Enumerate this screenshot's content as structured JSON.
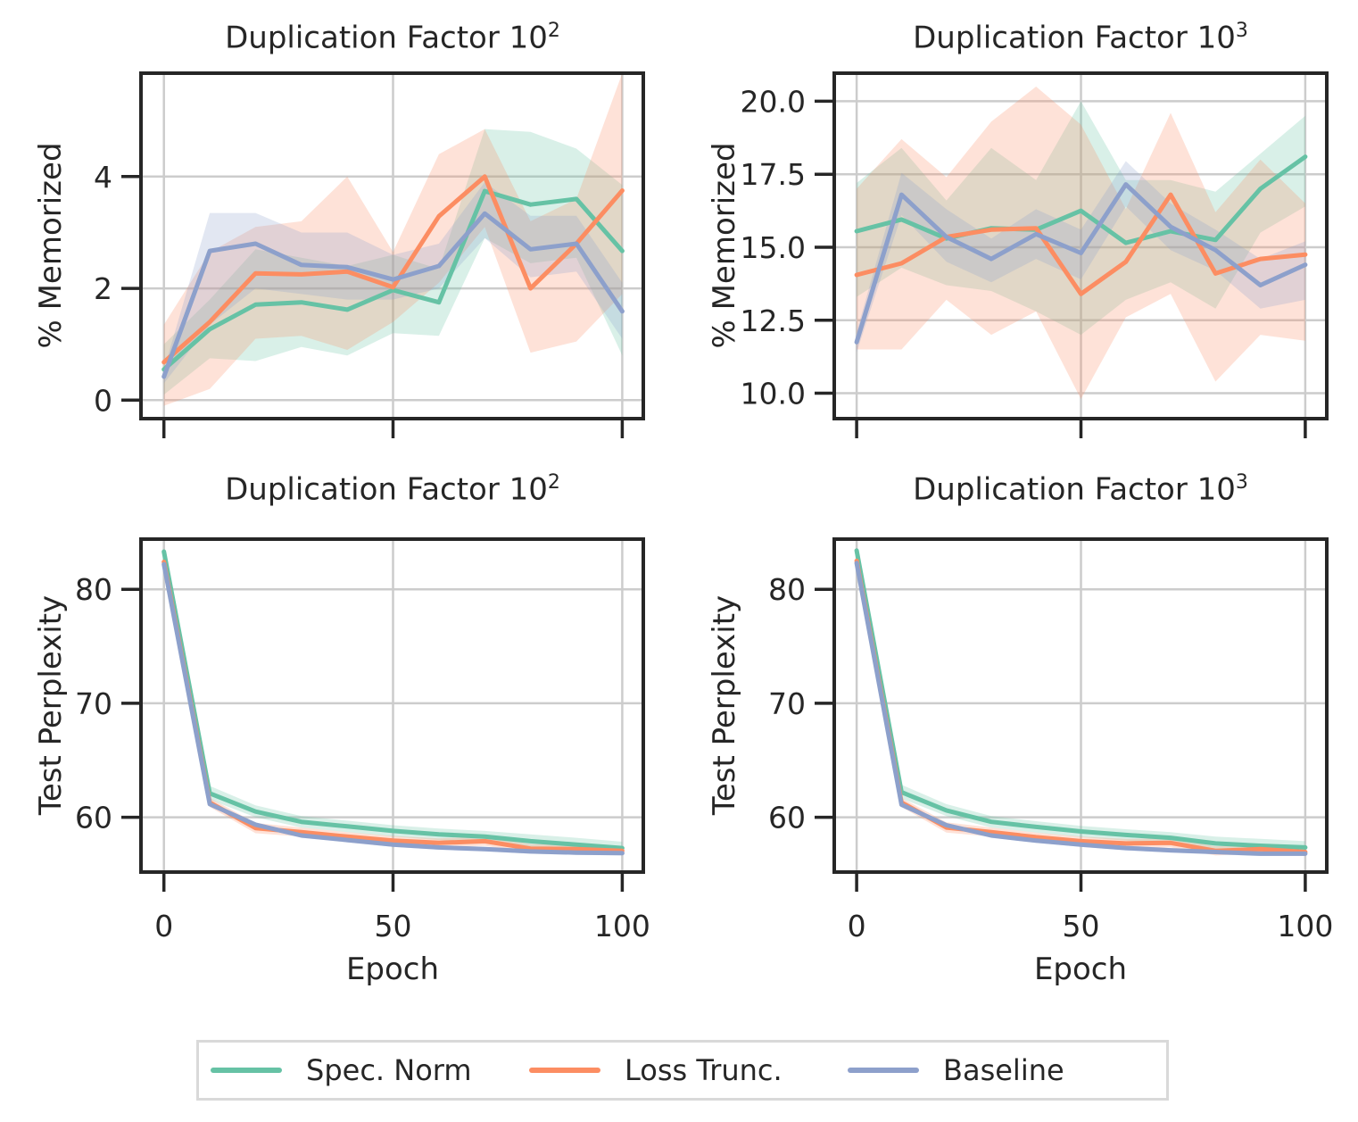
{
  "figure": {
    "background": "#ffffff",
    "text_color": "#262626",
    "grid_color": "#cccccc",
    "spine_color": "#262626",
    "legend": {
      "items": [
        {
          "label": "Spec. Norm",
          "color": "#66c2a5"
        },
        {
          "label": "Loss Trunc.",
          "color": "#fc8d62"
        },
        {
          "label": "Baseline",
          "color": "#8da0cb"
        }
      ]
    }
  },
  "chart_data": [
    {
      "type": "line",
      "position": "top-left",
      "title": "Duplication Factor 10^2",
      "title_base": "Duplication Factor 10",
      "title_exp": "2",
      "ylabel": "% Memorized",
      "xlabel": "",
      "grid": true,
      "x": [
        0,
        10,
        20,
        30,
        40,
        50,
        60,
        70,
        80,
        90,
        100
      ],
      "xlim": [
        -5,
        104.6
      ],
      "ylim": [
        -0.33,
        5.85
      ],
      "xtick_values": [
        0,
        50,
        100
      ],
      "xtick_labels": [
        "0",
        "50",
        "100"
      ],
      "show_x_tick_labels": false,
      "ytick_values": [
        0,
        2,
        4
      ],
      "ytick_labels": [
        "0",
        "2",
        "4"
      ],
      "series": [
        {
          "key": "spec-norm",
          "name": "Spec. Norm",
          "color": "#66c2a5",
          "values": [
            0.55,
            1.27,
            1.71,
            1.75,
            1.62,
            1.97,
            1.75,
            3.74,
            3.5,
            3.6,
            2.67
          ],
          "band_lower": [
            0.1,
            0.75,
            0.7,
            0.95,
            0.8,
            1.2,
            1.15,
            2.9,
            2.45,
            2.55,
            0.8
          ],
          "band_upper": [
            1.0,
            1.8,
            2.7,
            2.55,
            2.4,
            2.6,
            2.35,
            4.85,
            4.8,
            4.5,
            3.85
          ]
        },
        {
          "key": "loss-trunc",
          "name": "Loss Trunc.",
          "color": "#fc8d62",
          "values": [
            0.68,
            1.4,
            2.27,
            2.25,
            2.3,
            2.02,
            3.29,
            4.0,
            2.0,
            2.8,
            3.75
          ],
          "band_lower": [
            -0.1,
            0.2,
            1.1,
            1.15,
            0.9,
            1.4,
            2.1,
            3.1,
            0.85,
            1.05,
            1.9
          ],
          "band_upper": [
            1.35,
            2.65,
            3.1,
            3.2,
            4.0,
            2.65,
            4.4,
            4.85,
            3.2,
            3.6,
            5.85
          ]
        },
        {
          "key": "baseline",
          "name": "Baseline",
          "color": "#8da0cb",
          "values": [
            0.42,
            2.67,
            2.8,
            2.42,
            2.38,
            2.16,
            2.4,
            3.34,
            2.7,
            2.8,
            1.59
          ],
          "band_lower": [
            0.3,
            1.35,
            2.0,
            1.9,
            1.8,
            1.8,
            2.0,
            2.9,
            2.2,
            2.3,
            1.1
          ],
          "band_upper": [
            0.55,
            3.35,
            3.35,
            3.0,
            3.0,
            2.6,
            2.8,
            3.9,
            3.3,
            3.3,
            2.1
          ]
        }
      ]
    },
    {
      "type": "line",
      "position": "top-right",
      "title": "Duplication Factor 10^3",
      "title_base": "Duplication Factor 10",
      "title_exp": "3",
      "ylabel": "% Memorized",
      "xlabel": "",
      "grid": true,
      "x": [
        0,
        10,
        20,
        30,
        40,
        50,
        60,
        70,
        80,
        90,
        100
      ],
      "xlim": [
        -5,
        104.8
      ],
      "ylim": [
        9.13,
        20.96
      ],
      "xtick_values": [
        0,
        50,
        100
      ],
      "xtick_labels": [
        "0",
        "50",
        "100"
      ],
      "show_x_tick_labels": false,
      "ytick_values": [
        10.0,
        12.5,
        15.0,
        17.5,
        20.0
      ],
      "ytick_labels": [
        "10.0",
        "12.5",
        "15.0",
        "17.5",
        "20.0"
      ],
      "series": [
        {
          "key": "spec-norm",
          "name": "Spec. Norm",
          "color": "#66c2a5",
          "values": [
            15.55,
            15.95,
            15.3,
            15.65,
            15.6,
            16.25,
            15.15,
            15.55,
            15.25,
            17.0,
            18.1
          ],
          "band_lower": [
            13.3,
            14.3,
            13.7,
            13.5,
            12.8,
            12.0,
            13.2,
            13.8,
            12.9,
            15.5,
            16.4
          ],
          "band_upper": [
            17.2,
            18.4,
            16.6,
            18.4,
            17.3,
            20.0,
            17.3,
            17.3,
            16.9,
            18.2,
            19.5
          ]
        },
        {
          "key": "loss-trunc",
          "name": "Loss Trunc.",
          "color": "#fc8d62",
          "values": [
            14.05,
            14.45,
            15.35,
            15.6,
            15.65,
            13.4,
            14.5,
            16.8,
            14.1,
            14.6,
            14.75
          ],
          "band_lower": [
            11.5,
            11.5,
            13.2,
            12.0,
            12.8,
            9.8,
            12.6,
            13.4,
            10.4,
            12.0,
            11.8
          ],
          "band_upper": [
            17.0,
            18.7,
            17.4,
            19.3,
            20.5,
            19.2,
            16.3,
            19.6,
            16.2,
            18.0,
            16.5
          ]
        },
        {
          "key": "baseline",
          "name": "Baseline",
          "color": "#8da0cb",
          "values": [
            11.75,
            16.8,
            15.35,
            14.6,
            15.45,
            14.8,
            17.15,
            15.7,
            14.9,
            13.7,
            14.4
          ],
          "band_lower": [
            11.4,
            16.1,
            14.5,
            13.8,
            14.6,
            13.9,
            16.4,
            14.9,
            14.2,
            12.9,
            13.2
          ],
          "band_upper": [
            12.1,
            17.55,
            16.3,
            15.3,
            16.3,
            15.6,
            17.95,
            16.5,
            15.6,
            14.6,
            15.2
          ]
        }
      ]
    },
    {
      "type": "line",
      "position": "bottom-left",
      "title": "Duplication Factor 10^2",
      "title_base": "Duplication Factor 10",
      "title_exp": "2",
      "ylabel": "Test Perplexity",
      "xlabel": "Epoch",
      "grid": true,
      "x": [
        0,
        10,
        20,
        30,
        40,
        50,
        60,
        70,
        80,
        90,
        100
      ],
      "xlim": [
        -5,
        104.6
      ],
      "ylim": [
        55.19,
        84.4
      ],
      "xtick_values": [
        0,
        50,
        100
      ],
      "xtick_labels": [
        "0",
        "50",
        "100"
      ],
      "show_x_tick_labels": true,
      "ytick_values": [
        60,
        70,
        80
      ],
      "ytick_labels": [
        "60",
        "70",
        "80"
      ],
      "series": [
        {
          "key": "spec-norm",
          "name": "Spec. Norm",
          "color": "#66c2a5",
          "values": [
            83.3,
            62.1,
            60.5,
            59.6,
            59.2,
            58.8,
            58.5,
            58.3,
            57.9,
            57.6,
            57.3
          ],
          "band_lower": [
            82.95,
            61.55,
            60.0,
            59.1,
            58.7,
            58.3,
            58.0,
            57.8,
            57.4,
            57.1,
            56.9
          ],
          "band_upper": [
            83.65,
            62.75,
            61.05,
            60.1,
            59.7,
            59.3,
            59.0,
            58.8,
            58.5,
            58.2,
            57.85
          ]
        },
        {
          "key": "loss-trunc",
          "name": "Loss Trunc.",
          "color": "#fc8d62",
          "values": [
            82.4,
            61.3,
            59.05,
            58.7,
            58.3,
            57.95,
            57.75,
            57.9,
            57.25,
            57.2,
            57.05
          ],
          "band_lower": [
            82.1,
            60.9,
            58.6,
            58.3,
            57.9,
            57.6,
            57.35,
            57.5,
            56.85,
            56.8,
            56.7
          ],
          "band_upper": [
            82.7,
            61.7,
            59.5,
            59.1,
            58.7,
            58.35,
            58.15,
            58.3,
            57.65,
            57.6,
            57.4
          ]
        },
        {
          "key": "baseline",
          "name": "Baseline",
          "color": "#8da0cb",
          "values": [
            82.2,
            61.15,
            59.35,
            58.4,
            58.0,
            57.6,
            57.35,
            57.2,
            57.0,
            56.9,
            56.85
          ],
          "band_lower": [
            82.0,
            60.95,
            59.15,
            58.2,
            57.8,
            57.4,
            57.15,
            57.0,
            56.8,
            56.7,
            56.65
          ],
          "band_upper": [
            82.4,
            61.35,
            59.55,
            58.6,
            58.2,
            57.8,
            57.55,
            57.4,
            57.2,
            57.1,
            57.05
          ]
        }
      ]
    },
    {
      "type": "line",
      "position": "bottom-right",
      "title": "Duplication Factor 10^3",
      "title_base": "Duplication Factor 10",
      "title_exp": "3",
      "ylabel": "Test Perplexity",
      "xlabel": "Epoch",
      "grid": true,
      "x": [
        0,
        10,
        20,
        30,
        40,
        50,
        60,
        70,
        80,
        90,
        100
      ],
      "xlim": [
        -5,
        104.8
      ],
      "ylim": [
        55.19,
        84.4
      ],
      "xtick_values": [
        0,
        50,
        100
      ],
      "xtick_labels": [
        "0",
        "50",
        "100"
      ],
      "show_x_tick_labels": true,
      "ytick_values": [
        60,
        70,
        80
      ],
      "ytick_labels": [
        "60",
        "70",
        "80"
      ],
      "series": [
        {
          "key": "spec-norm",
          "name": "Spec. Norm",
          "color": "#66c2a5",
          "values": [
            83.4,
            62.2,
            60.6,
            59.6,
            59.15,
            58.75,
            58.45,
            58.2,
            57.7,
            57.5,
            57.35
          ],
          "band_lower": [
            83.05,
            61.65,
            60.1,
            59.1,
            58.65,
            58.25,
            57.95,
            57.7,
            57.2,
            57.0,
            56.9
          ],
          "band_upper": [
            83.75,
            62.85,
            61.15,
            60.1,
            59.65,
            59.25,
            58.95,
            58.7,
            58.3,
            58.1,
            57.9
          ]
        },
        {
          "key": "loss-trunc",
          "name": "Loss Trunc.",
          "color": "#fc8d62",
          "values": [
            82.5,
            61.3,
            59.1,
            58.7,
            58.25,
            57.9,
            57.7,
            57.75,
            57.05,
            57.2,
            56.95
          ],
          "band_lower": [
            82.2,
            60.9,
            58.65,
            58.3,
            57.85,
            57.55,
            57.3,
            57.35,
            56.65,
            56.8,
            56.6
          ],
          "band_upper": [
            82.8,
            61.7,
            59.55,
            59.1,
            58.65,
            58.3,
            58.1,
            58.15,
            57.45,
            57.6,
            57.35
          ]
        },
        {
          "key": "baseline",
          "name": "Baseline",
          "color": "#8da0cb",
          "values": [
            82.3,
            61.1,
            59.3,
            58.4,
            57.95,
            57.6,
            57.3,
            57.1,
            56.95,
            56.8,
            56.8
          ],
          "band_lower": [
            82.1,
            60.9,
            59.1,
            58.2,
            57.75,
            57.4,
            57.1,
            56.9,
            56.75,
            56.6,
            56.6
          ],
          "band_upper": [
            82.5,
            61.3,
            59.5,
            58.6,
            58.15,
            57.8,
            57.5,
            57.3,
            57.15,
            57.0,
            57.0
          ]
        }
      ]
    }
  ]
}
